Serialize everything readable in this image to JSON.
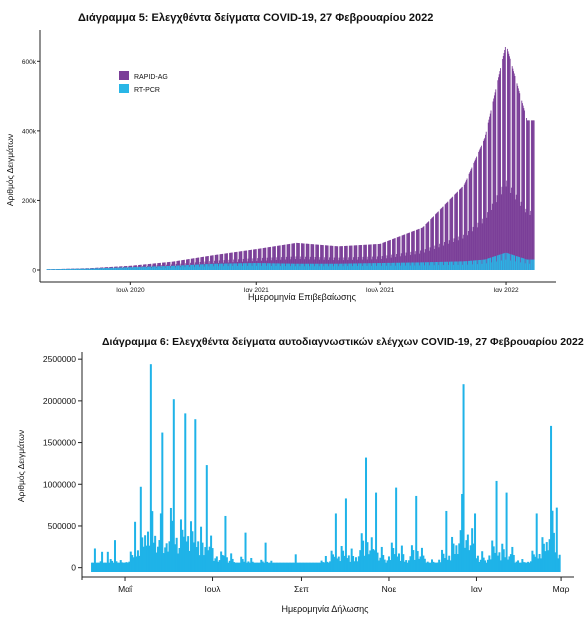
{
  "chart_data": [
    {
      "type": "area",
      "title": "Διάγραμμα 5: Ελεγχθέντα δείγματα COVID-19, 27 Φεβρουαρίου 2022",
      "xlabel": "Ημερομηνία Επιβεβαίωσης",
      "ylabel": "Αριθμός Δειγμάτων",
      "x_ticks": [
        "Ιουλ 2020",
        "Ιαν 2021",
        "Ιουλ 2021",
        "Ιαν 2022"
      ],
      "y_ticks": [
        "0",
        "200k",
        "400k",
        "600k"
      ],
      "ylim": [
        0,
        690000
      ],
      "legend": {
        "position": "top-left",
        "entries": [
          "RAPID-AG",
          "RT-PCR"
        ]
      },
      "colors": {
        "RAPID-AG": "#7b3f98",
        "RT-PCR": "#29b6e6"
      },
      "series": [
        {
          "name": "RAPID-AG",
          "x": [
            "2020-03",
            "2020-05",
            "2020-07",
            "2020-09",
            "2020-11",
            "2021-01",
            "2021-03",
            "2021-05",
            "2021-07",
            "2021-09",
            "2021-11",
            "2021-12",
            "2022-01",
            "2022-02"
          ],
          "values": [
            0,
            1000,
            4000,
            12000,
            25000,
            40000,
            60000,
            50000,
            55000,
            100000,
            220000,
            350000,
            600000,
            400000
          ]
        },
        {
          "name": "RT-PCR",
          "x": [
            "2020-03",
            "2020-05",
            "2020-07",
            "2020-09",
            "2020-11",
            "2021-01",
            "2021-03",
            "2021-05",
            "2021-07",
            "2021-09",
            "2021-11",
            "2021-12",
            "2022-01",
            "2022-02"
          ],
          "values": [
            2000,
            4000,
            8000,
            12000,
            18000,
            20000,
            18000,
            18000,
            20000,
            22000,
            25000,
            30000,
            50000,
            30000
          ]
        }
      ]
    },
    {
      "type": "bar",
      "title": "Διάγραμμα 6: Ελεγχθέντα δείγματα αυτοδιαγνωστικών ελέγχων COVID-19, 27 Φεβρουαρίου 2022",
      "xlabel": "Ημερομηνία Δήλωσης",
      "ylabel": "Αριθμός Δειγμάτων",
      "x_ticks": [
        "Μαΐ",
        "Ιουλ",
        "Σεπ",
        "Νοε",
        "Ιαν",
        "Μαρ"
      ],
      "y_ticks": [
        "0",
        "500000",
        "1000000",
        "1500000",
        "2000000",
        "2500000"
      ],
      "ylim": [
        -100000,
        2550000
      ],
      "color": "#1fb3e8",
      "peaks": [
        {
          "x": "2021-04-10",
          "value": 230000
        },
        {
          "x": "2021-04-15",
          "value": 190000
        },
        {
          "x": "2021-04-19",
          "value": 190000
        },
        {
          "x": "2021-04-24",
          "value": 330000
        },
        {
          "x": "2021-05-08",
          "value": 550000
        },
        {
          "x": "2021-05-12",
          "value": 970000
        },
        {
          "x": "2021-05-19",
          "value": 2440000
        },
        {
          "x": "2021-05-27",
          "value": 1620000
        },
        {
          "x": "2021-06-04",
          "value": 2020000
        },
        {
          "x": "2021-06-12",
          "value": 1850000
        },
        {
          "x": "2021-06-19",
          "value": 1780000
        },
        {
          "x": "2021-06-27",
          "value": 1230000
        },
        {
          "x": "2021-07-10",
          "value": 620000
        },
        {
          "x": "2021-07-24",
          "value": 420000
        },
        {
          "x": "2021-08-07",
          "value": 300000
        },
        {
          "x": "2021-08-28",
          "value": 160000
        },
        {
          "x": "2021-09-18",
          "value": 140000
        },
        {
          "x": "2021-09-25",
          "value": 650000
        },
        {
          "x": "2021-10-02",
          "value": 830000
        },
        {
          "x": "2021-10-16",
          "value": 1320000
        },
        {
          "x": "2021-10-23",
          "value": 900000
        },
        {
          "x": "2021-11-06",
          "value": 960000
        },
        {
          "x": "2021-11-20",
          "value": 860000
        },
        {
          "x": "2021-12-11",
          "value": 680000
        },
        {
          "x": "2021-12-23",
          "value": 2200000
        },
        {
          "x": "2021-12-31",
          "value": 650000
        },
        {
          "x": "2022-01-15",
          "value": 1040000
        },
        {
          "x": "2022-01-22",
          "value": 900000
        },
        {
          "x": "2022-02-12",
          "value": 650000
        },
        {
          "x": "2022-02-22",
          "value": 1700000
        },
        {
          "x": "2022-02-26",
          "value": 720000
        }
      ]
    }
  ]
}
